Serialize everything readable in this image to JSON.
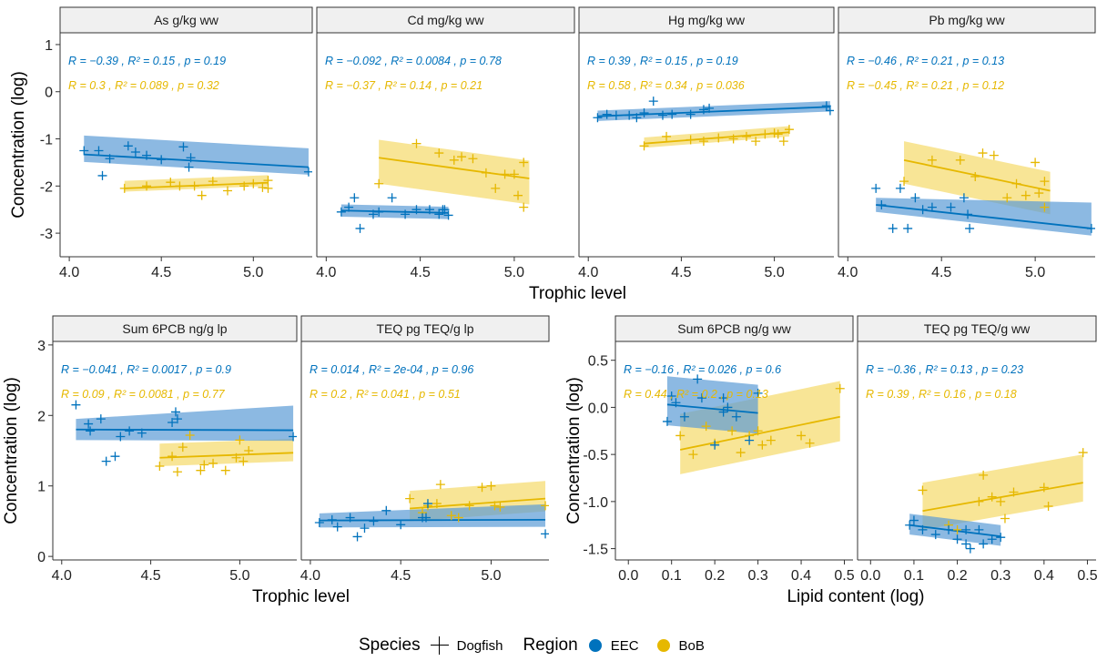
{
  "colors": {
    "EEC": "#0072BD",
    "EEC_fill": "#5b9bd5",
    "BoB": "#E6B800",
    "BoB_fill": "#F3CF3F",
    "strip": "#f0f0f0"
  },
  "legend": {
    "species_title": "Species",
    "species_item": "Dogfish",
    "region_title": "Region",
    "region_items": [
      "EEC",
      "BoB"
    ]
  },
  "chart_data": [
    {
      "type": "scatter",
      "title": "As g/kg ww",
      "xlabel": "Trophic level",
      "ylabel": "Concentration (log)",
      "xlim": [
        3.95,
        5.32
      ],
      "ylim": [
        -3.5,
        1.25
      ],
      "xticks": [
        4.0,
        4.5,
        5.0
      ],
      "yticks": [
        -3,
        -2,
        -1,
        0,
        1
      ],
      "series": [
        {
          "name": "EEC",
          "stats": "R = −0.39 , R² = 0.15 , p = 0.19",
          "x": [
            4.08,
            4.16,
            4.18,
            4.22,
            4.32,
            4.36,
            4.42,
            4.5,
            4.62,
            4.65,
            4.66,
            5.3
          ],
          "y": [
            -1.25,
            -1.25,
            -1.78,
            -1.42,
            -1.15,
            -1.28,
            -1.35,
            -1.44,
            -1.17,
            -1.6,
            -1.4,
            -1.7
          ],
          "fit_x": [
            4.08,
            5.3
          ],
          "fit_y": [
            -1.33,
            -1.6
          ],
          "band": [
            [
              0.16,
              0.4
            ],
            [
              0.16,
              0.4
            ]
          ]
        },
        {
          "name": "BoB",
          "stats": "R = 0.3 , R² = 0.089 , p = 0.32",
          "x": [
            4.3,
            4.42,
            4.55,
            4.6,
            4.68,
            4.72,
            4.78,
            4.86,
            4.95,
            5.0,
            5.05,
            5.08,
            5.08
          ],
          "y": [
            -2.05,
            -2.0,
            -1.92,
            -2.0,
            -2.0,
            -2.2,
            -1.9,
            -2.1,
            -2.0,
            -1.95,
            -2.03,
            -1.88,
            -2.05
          ],
          "fit_x": [
            4.3,
            5.08
          ],
          "fit_y": [
            -2.05,
            -1.93
          ],
          "band": [
            [
              0.07,
              0.16
            ],
            [
              0.07,
              0.16
            ]
          ]
        }
      ]
    },
    {
      "type": "scatter",
      "title": "Cd mg/kg ww",
      "xlabel": "Trophic level",
      "ylabel": "",
      "xlim": [
        3.95,
        5.32
      ],
      "ylim": [
        -3.5,
        1.25
      ],
      "xticks": [
        4.0,
        4.5,
        5.0
      ],
      "yticks": [],
      "series": [
        {
          "name": "EEC",
          "stats": "R = −0.092 , R² = 0.0084 , p = 0.78",
          "x": [
            4.08,
            4.12,
            4.15,
            4.18,
            4.25,
            4.28,
            4.35,
            4.42,
            4.48,
            4.55,
            4.6,
            4.62,
            4.63,
            4.65
          ],
          "y": [
            -2.55,
            -2.45,
            -2.25,
            -2.9,
            -2.6,
            -2.55,
            -2.25,
            -2.6,
            -2.5,
            -2.5,
            -2.6,
            -2.5,
            -2.5,
            -2.62
          ],
          "fit_x": [
            4.08,
            4.65
          ],
          "fit_y": [
            -2.52,
            -2.57
          ],
          "band": [
            [
              0.13,
              0.13
            ],
            [
              0.13,
              0.13
            ]
          ]
        },
        {
          "name": "BoB",
          "stats": "R = −0.37 , R² = 0.14 , p = 0.21",
          "x": [
            4.28,
            4.48,
            4.6,
            4.68,
            4.72,
            4.78,
            4.85,
            4.9,
            4.95,
            5.0,
            5.02,
            5.05,
            5.05
          ],
          "y": [
            -1.95,
            -1.1,
            -1.3,
            -1.45,
            -1.38,
            -1.42,
            -1.72,
            -2.05,
            -1.75,
            -1.75,
            -2.2,
            -1.5,
            -2.45
          ],
          "fit_x": [
            4.28,
            5.08
          ],
          "fit_y": [
            -1.4,
            -1.84
          ],
          "band": [
            [
              0.55,
              0.38
            ],
            [
              0.55,
              0.38
            ]
          ]
        }
      ]
    },
    {
      "type": "scatter",
      "title": "Hg mg/kg ww",
      "xlabel": "Trophic level",
      "ylabel": "",
      "xlim": [
        3.95,
        5.32
      ],
      "ylim": [
        -3.5,
        1.25
      ],
      "xticks": [
        4.0,
        4.5,
        5.0
      ],
      "yticks": [],
      "series": [
        {
          "name": "EEC",
          "stats": "R = 0.39 , R² = 0.15 , p = 0.19",
          "x": [
            4.05,
            4.1,
            4.15,
            4.22,
            4.26,
            4.3,
            4.35,
            4.4,
            4.45,
            4.55,
            4.62,
            4.65,
            5.28,
            5.3
          ],
          "y": [
            -0.55,
            -0.48,
            -0.5,
            -0.5,
            -0.55,
            -0.45,
            -0.2,
            -0.5,
            -0.48,
            -0.48,
            -0.38,
            -0.35,
            -0.3,
            -0.4
          ],
          "fit_x": [
            4.05,
            5.3
          ],
          "fit_y": [
            -0.52,
            -0.32
          ],
          "band": [
            [
              0.1,
              0.12
            ],
            [
              0.1,
              0.12
            ]
          ]
        },
        {
          "name": "BoB",
          "stats": "R = 0.58 , R² = 0.34 , p = 0.036",
          "x": [
            4.3,
            4.42,
            4.55,
            4.62,
            4.7,
            4.78,
            4.85,
            4.9,
            4.95,
            5.0,
            5.02,
            5.05,
            5.08
          ],
          "y": [
            -1.15,
            -0.95,
            -1.02,
            -1.05,
            -0.98,
            -1.0,
            -0.95,
            -1.05,
            -0.9,
            -0.88,
            -0.9,
            -1.05,
            -0.8
          ],
          "fit_x": [
            4.3,
            5.08
          ],
          "fit_y": [
            -1.1,
            -0.86
          ],
          "band": [
            [
              0.09,
              0.13
            ],
            [
              0.09,
              0.13
            ]
          ]
        }
      ]
    },
    {
      "type": "scatter",
      "title": "Pb mg/kg ww",
      "xlabel": "Trophic level",
      "ylabel": "",
      "xlim": [
        3.95,
        5.32
      ],
      "ylim": [
        -3.5,
        1.25
      ],
      "xticks": [
        4.0,
        4.5,
        5.0
      ],
      "yticks": [],
      "series": [
        {
          "name": "EEC",
          "stats": "R = −0.46 , R² = 0.21 , p = 0.13",
          "x": [
            4.15,
            4.18,
            4.24,
            4.28,
            4.32,
            4.36,
            4.4,
            4.45,
            4.55,
            4.62,
            4.64,
            4.65,
            5.3
          ],
          "y": [
            -2.05,
            -2.4,
            -2.9,
            -2.05,
            -2.9,
            -2.25,
            -2.5,
            -2.45,
            -2.45,
            -2.25,
            -2.6,
            -2.9,
            -2.9
          ],
          "fit_x": [
            4.15,
            5.3
          ],
          "fit_y": [
            -2.4,
            -2.9
          ],
          "band": [
            [
              0.15,
              0.15
            ],
            [
              0.15,
              0.55
            ]
          ]
        },
        {
          "name": "BoB",
          "stats": "R = −0.45 , R² = 0.21 , p = 0.12",
          "x": [
            4.3,
            4.45,
            4.6,
            4.68,
            4.72,
            4.78,
            4.85,
            4.9,
            4.95,
            5.0,
            5.02,
            5.05,
            5.05
          ],
          "y": [
            -1.9,
            -1.45,
            -1.45,
            -1.8,
            -1.3,
            -1.35,
            -2.25,
            -1.95,
            -2.2,
            -1.5,
            -2.15,
            -1.9,
            -2.45
          ],
          "fit_x": [
            4.3,
            5.08
          ],
          "fit_y": [
            -1.45,
            -2.1
          ],
          "band": [
            [
              0.5,
              0.4
            ],
            [
              0.5,
              0.4
            ]
          ]
        }
      ]
    },
    {
      "type": "scatter",
      "title": "Sum 6PCB ng/g lp",
      "xlabel": "Trophic level",
      "ylabel": "Concentration (log)",
      "xlim": [
        3.95,
        5.32
      ],
      "ylim": [
        -0.05,
        3.05
      ],
      "xticks": [
        4.0,
        4.5,
        5.0
      ],
      "yticks": [
        0,
        1,
        2,
        3
      ],
      "series": [
        {
          "name": "EEC",
          "stats": "R = −0.041 , R² = 0.0017 , p = 0.9",
          "x": [
            4.08,
            4.15,
            4.16,
            4.22,
            4.25,
            4.3,
            4.33,
            4.38,
            4.45,
            4.62,
            4.64,
            4.65,
            5.3
          ],
          "y": [
            2.15,
            1.88,
            1.78,
            1.95,
            1.35,
            1.42,
            1.7,
            1.78,
            1.75,
            1.9,
            2.05,
            1.95,
            1.7
          ],
          "fit_x": [
            4.08,
            5.3
          ],
          "fit_y": [
            1.8,
            1.79
          ],
          "band": [
            [
              0.15,
              0.15
            ],
            [
              0.15,
              0.35
            ]
          ]
        },
        {
          "name": "BoB",
          "stats": "R = 0.09 , R² = 0.0081 , p = 0.77",
          "x": [
            4.55,
            4.62,
            4.65,
            4.68,
            4.72,
            4.78,
            4.8,
            4.85,
            4.92,
            4.98,
            5.0,
            5.02,
            5.05
          ],
          "y": [
            1.28,
            1.42,
            1.2,
            1.55,
            1.72,
            1.22,
            1.3,
            1.32,
            1.22,
            1.4,
            1.65,
            1.35,
            1.5
          ],
          "fit_x": [
            4.55,
            5.3
          ],
          "fit_y": [
            1.4,
            1.47
          ],
          "band": [
            [
              0.12,
              0.2
            ],
            [
              0.12,
              0.2
            ]
          ]
        }
      ]
    },
    {
      "type": "scatter",
      "title": "TEQ pg TEQ/g lp",
      "xlabel": "Trophic level",
      "ylabel": "",
      "xlim": [
        3.95,
        5.32
      ],
      "ylim": [
        -0.05,
        3.05
      ],
      "xticks": [
        4.0,
        4.5,
        5.0
      ],
      "yticks": [],
      "series": [
        {
          "name": "EEC",
          "stats": "R = 0.014 , R² = 2e-04 , p = 0.96",
          "x": [
            4.05,
            4.12,
            4.15,
            4.22,
            4.26,
            4.3,
            4.35,
            4.42,
            4.5,
            4.62,
            4.64,
            4.65,
            5.3
          ],
          "y": [
            0.48,
            0.52,
            0.42,
            0.55,
            0.28,
            0.4,
            0.5,
            0.65,
            0.45,
            0.55,
            0.55,
            0.75,
            0.32
          ],
          "fit_x": [
            4.05,
            5.3
          ],
          "fit_y": [
            0.51,
            0.52
          ],
          "band": [
            [
              0.1,
              0.1
            ],
            [
              0.1,
              0.22
            ]
          ]
        },
        {
          "name": "BoB",
          "stats": "R = 0.2 , R² = 0.041 , p = 0.51",
          "x": [
            4.55,
            4.62,
            4.65,
            4.7,
            4.72,
            4.78,
            4.82,
            4.88,
            4.95,
            5.0,
            5.02,
            5.05,
            5.3
          ],
          "y": [
            0.82,
            0.62,
            0.72,
            0.75,
            1.02,
            0.58,
            0.55,
            0.72,
            0.98,
            1.0,
            0.72,
            0.7,
            0.72
          ],
          "fit_x": [
            4.55,
            5.3
          ],
          "fit_y": [
            0.68,
            0.82
          ],
          "band": [
            [
              0.18,
              0.25
            ],
            [
              0.18,
              0.25
            ]
          ]
        }
      ]
    },
    {
      "type": "scatter",
      "title": "Sum 6PCB ng/g ww",
      "xlabel": "Lipid content (log)",
      "ylabel": "Concentration (log)",
      "xlim": [
        -0.03,
        0.52
      ],
      "ylim": [
        -1.62,
        0.7
      ],
      "xticks": [
        0.0,
        0.1,
        0.2,
        0.3,
        0.4,
        0.5
      ],
      "xticklabels": [
        "0.0",
        "0.1",
        "0.2",
        "0.3",
        "0.4",
        "0.5"
      ],
      "yticks": [
        -1.5,
        -1.0,
        -0.5,
        0.0,
        0.5
      ],
      "yticklabels": [
        "-1.5",
        "-1.0",
        "-0.5",
        "0.0",
        "0.5"
      ],
      "series": [
        {
          "name": "EEC",
          "stats": "R = −0.16 , R² = 0.026 , p = 0.6",
          "x": [
            0.09,
            0.1,
            0.11,
            0.13,
            0.16,
            0.17,
            0.2,
            0.22,
            0.22,
            0.23,
            0.25,
            0.28,
            0.3
          ],
          "y": [
            -0.15,
            0.12,
            0.05,
            -0.1,
            0.3,
            0.1,
            -0.4,
            0.1,
            -0.05,
            0.0,
            -0.1,
            -0.35,
            0.15
          ],
          "fit_x": [
            0.09,
            0.3
          ],
          "fit_y": [
            0.03,
            -0.06
          ],
          "band": [
            [
              0.22,
              0.3
            ],
            [
              0.22,
              0.3
            ]
          ]
        },
        {
          "name": "BoB",
          "stats": "R = 0.44 , R² = 0.2 , p = 0.13",
          "x": [
            0.12,
            0.15,
            0.18,
            0.2,
            0.24,
            0.26,
            0.28,
            0.3,
            0.31,
            0.33,
            0.4,
            0.42,
            0.49
          ],
          "y": [
            -0.3,
            -0.5,
            -0.2,
            -0.38,
            -0.25,
            -0.48,
            -0.3,
            -0.25,
            -0.4,
            -0.35,
            -0.3,
            -0.38,
            0.2
          ],
          "fit_x": [
            0.12,
            0.49
          ],
          "fit_y": [
            -0.45,
            -0.1
          ],
          "band": [
            [
              0.26,
              0.38
            ],
            [
              0.26,
              0.38
            ]
          ]
        }
      ]
    },
    {
      "type": "scatter",
      "title": "TEQ pg TEQ/g ww",
      "xlabel": "Lipid content (log)",
      "ylabel": "",
      "xlim": [
        -0.03,
        0.52
      ],
      "ylim": [
        -1.62,
        0.7
      ],
      "xticks": [
        0.0,
        0.1,
        0.2,
        0.3,
        0.4,
        0.5
      ],
      "xticklabels": [
        "0.0",
        "0.1",
        "0.2",
        "0.3",
        "0.4",
        "0.5"
      ],
      "yticks": [],
      "series": [
        {
          "name": "EEC",
          "stats": "R = −0.36 , R² = 0.13 , p = 0.23",
          "x": [
            0.09,
            0.1,
            0.12,
            0.15,
            0.18,
            0.2,
            0.22,
            0.22,
            0.23,
            0.25,
            0.26,
            0.28,
            0.3
          ],
          "y": [
            -1.25,
            -1.2,
            -1.3,
            -1.35,
            -1.3,
            -1.4,
            -1.3,
            -1.45,
            -1.5,
            -1.3,
            -1.45,
            -1.4,
            -1.38
          ],
          "fit_x": [
            0.09,
            0.3
          ],
          "fit_y": [
            -1.25,
            -1.37
          ],
          "band": [
            [
              0.1,
              0.12
            ],
            [
              0.1,
              0.12
            ]
          ]
        },
        {
          "name": "BoB",
          "stats": "R = 0.39 , R² = 0.16 , p = 0.18",
          "x": [
            0.12,
            0.18,
            0.2,
            0.25,
            0.26,
            0.28,
            0.3,
            0.31,
            0.33,
            0.4,
            0.41,
            0.49
          ],
          "y": [
            -0.88,
            -1.25,
            -1.3,
            -1.0,
            -0.72,
            -0.95,
            -1.0,
            -1.18,
            -0.9,
            -0.85,
            -1.05,
            -0.48
          ],
          "fit_x": [
            0.12,
            0.49
          ],
          "fit_y": [
            -1.1,
            -0.8
          ],
          "band": [
            [
              0.2,
              0.3
            ],
            [
              0.2,
              0.3
            ]
          ]
        }
      ]
    }
  ]
}
